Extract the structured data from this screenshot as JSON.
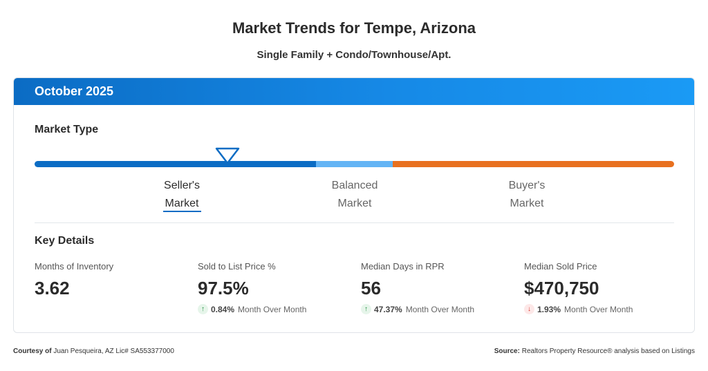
{
  "header": {
    "title": "Market Trends for Tempe, Arizona",
    "subtitle": "Single Family + Condo/Townhouse/Apt."
  },
  "card": {
    "period": "October 2025",
    "market_type": {
      "label": "Market Type",
      "selected": "Seller's Market",
      "segments": [
        {
          "line1": "Seller's",
          "line2": "Market",
          "color": "#0b6cc4"
        },
        {
          "line1": "Balanced",
          "line2": "Market",
          "color": "#63b4f5"
        },
        {
          "line1": "Buyer's",
          "line2": "Market",
          "color": "#e8701f"
        }
      ]
    },
    "key_details": {
      "label": "Key Details",
      "stats": [
        {
          "label": "Months of Inventory",
          "value": "3.62"
        },
        {
          "label": "Sold to List Price %",
          "value": "97.5%",
          "change": "0.84%",
          "direction": "up",
          "change_label": "Month Over Month"
        },
        {
          "label": "Median Days in RPR",
          "value": "56",
          "change": "47.37%",
          "direction": "up",
          "change_label": "Month Over Month"
        },
        {
          "label": "Median Sold Price",
          "value": "$470,750",
          "change": "1.93%",
          "direction": "down",
          "change_label": "Month Over Month"
        }
      ]
    }
  },
  "footer": {
    "courtesy_label": "Courtesy of",
    "courtesy_text": "Juan Pesqueira, AZ Lic# SA553377000",
    "source_label": "Source:",
    "source_text": "Realtors Property Resource® analysis based on Listings"
  },
  "colors": {
    "header_blue": "#0b6cc4",
    "up_green": "#1e8e3e",
    "down_red": "#d93025"
  }
}
